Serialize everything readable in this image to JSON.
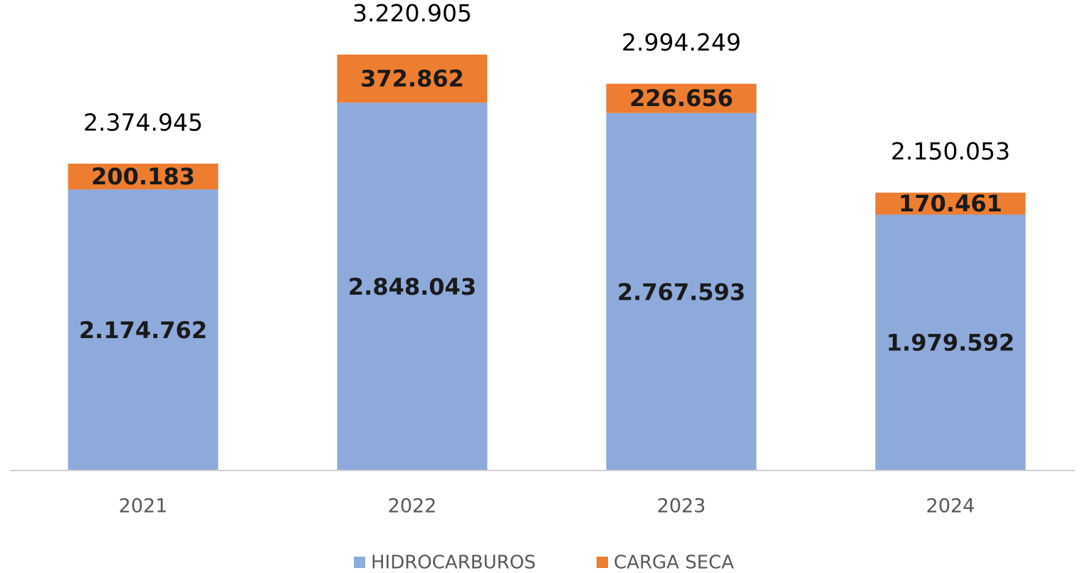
{
  "chart_data": {
    "type": "stacked_bar",
    "categories": [
      "2021",
      "2022",
      "2023",
      "2024"
    ],
    "series": [
      {
        "name": "HIDROCARBUROS",
        "color": "#8eaadb",
        "values": [
          2174762,
          2848043,
          2767593,
          1979592
        ],
        "value_labels": [
          "2.174.762",
          "2.848.043",
          "2.767.593",
          "1.979.592"
        ]
      },
      {
        "name": "CARGA SECA",
        "color": "#ed7d31",
        "values": [
          200183,
          372862,
          226656,
          170461
        ],
        "value_labels": [
          "200.183",
          "372.862",
          "226.656",
          "170.461"
        ]
      }
    ],
    "totals": [
      2374945,
      3220905,
      2994249,
      2150053
    ],
    "total_labels": [
      "2.374.945",
      "3.220.905",
      "2.994.249",
      "2.150.053"
    ],
    "ylim": [
      0,
      3600000
    ],
    "legend": "bottom"
  }
}
